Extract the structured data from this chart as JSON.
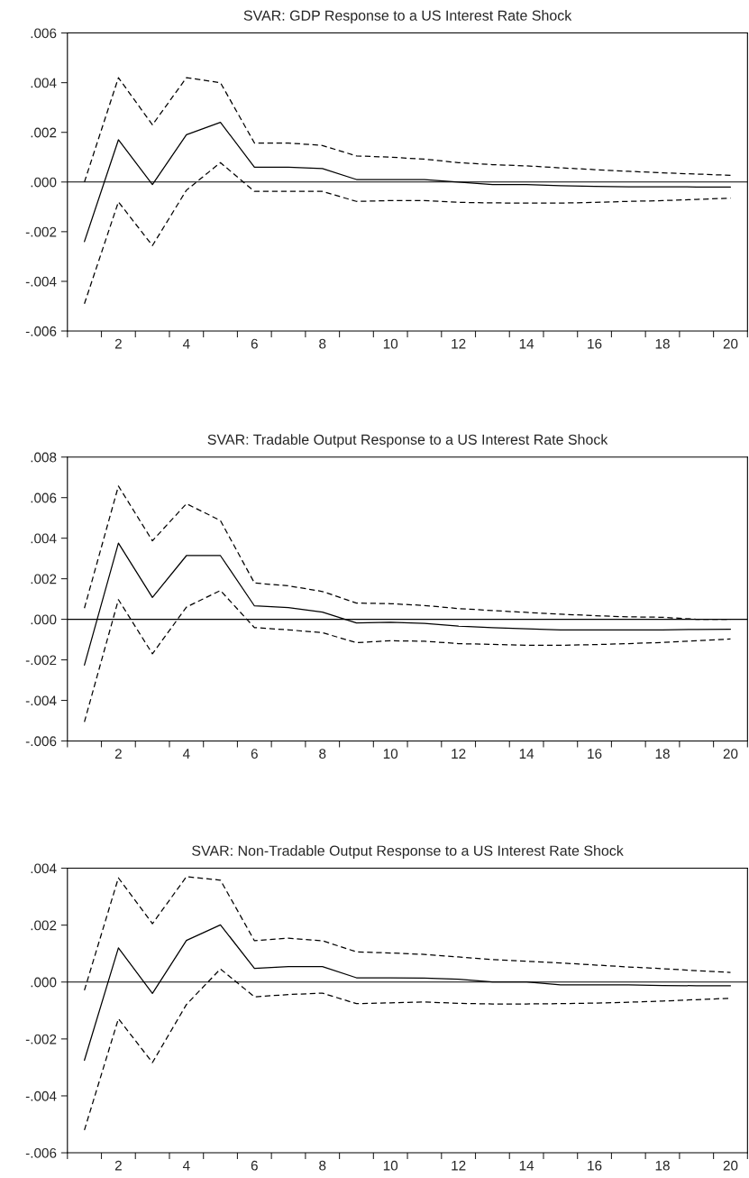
{
  "chart_data": [
    {
      "type": "line",
      "title": "SVAR: GDP Response to a US Interest Rate Shock",
      "x": [
        1,
        2,
        3,
        4,
        5,
        6,
        7,
        8,
        9,
        10,
        11,
        12,
        13,
        14,
        15,
        16,
        17,
        18,
        19,
        20
      ],
      "series": [
        {
          "color": "#000000",
          "line_style": "solid",
          "values": [
            -0.0024,
            0.0017,
            -0.0001,
            0.0019,
            0.0024,
            0.0006,
            0.0006,
            0.00054,
            0.0001,
            0.0001,
            0.0001,
            0.0,
            -0.0001,
            -0.0001,
            -0.00015,
            -0.00018,
            -0.00019,
            -0.00019,
            -0.0002,
            -0.0002
          ]
        },
        {
          "color": "#000000",
          "line_style": "dashed",
          "values": [
            0.0,
            0.0042,
            0.0023,
            0.0042,
            0.004,
            0.00157,
            0.00157,
            0.00147,
            0.00105,
            0.001,
            0.00092,
            0.00078,
            0.0007,
            0.00065,
            0.00057,
            0.0005,
            0.00043,
            0.00037,
            0.00032,
            0.00027
          ]
        },
        {
          "color": "#000000",
          "line_style": "dashed",
          "values": [
            -0.0049,
            -0.0008,
            -0.00256,
            -0.00033,
            0.00078,
            -0.00038,
            -0.00038,
            -0.00038,
            -0.00078,
            -0.00075,
            -0.00075,
            -0.00082,
            -0.00084,
            -0.00085,
            -0.00085,
            -0.00082,
            -0.00078,
            -0.00075,
            -0.0007,
            -0.00065
          ]
        }
      ],
      "xlim": [
        0.5,
        20.5
      ],
      "ylim": [
        -0.006,
        0.006
      ],
      "xticks": [
        {
          "value": 0.5,
          "label": null
        },
        {
          "value": 1.5,
          "label": null
        },
        {
          "value": 2,
          "label": "2"
        },
        {
          "value": 2.5,
          "label": null
        },
        {
          "value": 3.5,
          "label": null
        },
        {
          "value": 4,
          "label": "4"
        },
        {
          "value": 4.5,
          "label": null
        },
        {
          "value": 5.5,
          "label": null
        },
        {
          "value": 6,
          "label": "6"
        },
        {
          "value": 6.5,
          "label": null
        },
        {
          "value": 7.5,
          "label": null
        },
        {
          "value": 8,
          "label": "8"
        },
        {
          "value": 8.5,
          "label": null
        },
        {
          "value": 9.5,
          "label": null
        },
        {
          "value": 10,
          "label": "10"
        },
        {
          "value": 10.5,
          "label": null
        },
        {
          "value": 11.5,
          "label": null
        },
        {
          "value": 12,
          "label": "12"
        },
        {
          "value": 12.5,
          "label": null
        },
        {
          "value": 13.5,
          "label": null
        },
        {
          "value": 14,
          "label": "14"
        },
        {
          "value": 14.5,
          "label": null
        },
        {
          "value": 15.5,
          "label": null
        },
        {
          "value": 16,
          "label": "16"
        },
        {
          "value": 16.5,
          "label": null
        },
        {
          "value": 17.5,
          "label": null
        },
        {
          "value": 18,
          "label": "18"
        },
        {
          "value": 18.5,
          "label": null
        },
        {
          "value": 19.5,
          "label": null
        },
        {
          "value": 20,
          "label": "20"
        },
        {
          "value": 20.5,
          "label": null
        }
      ],
      "yticks": [
        {
          "value": -0.006,
          "label": "-.006"
        },
        {
          "value": -0.004,
          "label": "-.004"
        },
        {
          "value": -0.002,
          "label": "-.002"
        },
        {
          "value": 0,
          "label": ".000"
        },
        {
          "value": 0.002,
          "label": ".002"
        },
        {
          "value": 0.004,
          "label": ".004"
        },
        {
          "value": 0.006,
          "label": ".006"
        }
      ],
      "ref_lines": [
        {
          "axis": "y",
          "value": 0,
          "color": "#000000"
        }
      ]
    },
    {
      "type": "line",
      "title": "SVAR: Tradable Output Response to a US Interest Rate Shock",
      "x": [
        1,
        2,
        3,
        4,
        5,
        6,
        7,
        8,
        9,
        10,
        11,
        12,
        13,
        14,
        15,
        16,
        17,
        18,
        19,
        20
      ],
      "series": [
        {
          "color": "#000000",
          "line_style": "solid",
          "values": [
            -0.00226,
            0.00376,
            0.00108,
            0.00314,
            0.00314,
            0.00066,
            0.00058,
            0.00035,
            -0.00018,
            -0.00015,
            -0.0002,
            -0.00034,
            -0.00041,
            -0.00047,
            -0.00052,
            -0.00053,
            -0.00053,
            -0.00052,
            -0.0005,
            -0.00049
          ]
        },
        {
          "color": "#000000",
          "line_style": "dashed",
          "values": [
            0.00055,
            0.00657,
            0.00387,
            0.0057,
            0.00487,
            0.00179,
            0.00165,
            0.00137,
            0.0008,
            0.00077,
            0.00068,
            0.00053,
            0.00043,
            0.00034,
            0.00025,
            0.00018,
            0.00012,
            0.0001,
            0.0,
            0.0
          ]
        },
        {
          "color": "#000000",
          "line_style": "dashed",
          "values": [
            -0.00506,
            0.00097,
            -0.0017,
            0.0006,
            0.00142,
            -0.00041,
            -0.00052,
            -0.00066,
            -0.00115,
            -0.00106,
            -0.00108,
            -0.0012,
            -0.00124,
            -0.00128,
            -0.00128,
            -0.00125,
            -0.0012,
            -0.00114,
            -0.00106,
            -0.00097
          ]
        }
      ],
      "xlim": [
        0.5,
        20.5
      ],
      "ylim": [
        -0.006,
        0.008
      ],
      "xticks": [
        {
          "value": 0.5,
          "label": null
        },
        {
          "value": 1.5,
          "label": null
        },
        {
          "value": 2,
          "label": "2"
        },
        {
          "value": 2.5,
          "label": null
        },
        {
          "value": 3.5,
          "label": null
        },
        {
          "value": 4,
          "label": "4"
        },
        {
          "value": 4.5,
          "label": null
        },
        {
          "value": 5.5,
          "label": null
        },
        {
          "value": 6,
          "label": "6"
        },
        {
          "value": 6.5,
          "label": null
        },
        {
          "value": 7.5,
          "label": null
        },
        {
          "value": 8,
          "label": "8"
        },
        {
          "value": 8.5,
          "label": null
        },
        {
          "value": 9.5,
          "label": null
        },
        {
          "value": 10,
          "label": "10"
        },
        {
          "value": 10.5,
          "label": null
        },
        {
          "value": 11.5,
          "label": null
        },
        {
          "value": 12,
          "label": "12"
        },
        {
          "value": 12.5,
          "label": null
        },
        {
          "value": 13.5,
          "label": null
        },
        {
          "value": 14,
          "label": "14"
        },
        {
          "value": 14.5,
          "label": null
        },
        {
          "value": 15.5,
          "label": null
        },
        {
          "value": 16,
          "label": "16"
        },
        {
          "value": 16.5,
          "label": null
        },
        {
          "value": 17.5,
          "label": null
        },
        {
          "value": 18,
          "label": "18"
        },
        {
          "value": 18.5,
          "label": null
        },
        {
          "value": 19.5,
          "label": null
        },
        {
          "value": 20,
          "label": "20"
        },
        {
          "value": 20.5,
          "label": null
        }
      ],
      "yticks": [
        {
          "value": -0.006,
          "label": "-.006"
        },
        {
          "value": -0.004,
          "label": "-.004"
        },
        {
          "value": -0.002,
          "label": "-.002"
        },
        {
          "value": 0,
          "label": ".000"
        },
        {
          "value": 0.002,
          "label": ".002"
        },
        {
          "value": 0.004,
          "label": ".004"
        },
        {
          "value": 0.006,
          "label": ".006"
        },
        {
          "value": 0.008,
          "label": ".008"
        }
      ],
      "ref_lines": [
        {
          "axis": "y",
          "value": 0,
          "color": "#000000"
        }
      ]
    },
    {
      "type": "line",
      "title": "SVAR: Non-Tradable Output Response to a US Interest Rate Shock",
      "x": [
        1,
        2,
        3,
        4,
        5,
        6,
        7,
        8,
        9,
        10,
        11,
        12,
        13,
        14,
        15,
        16,
        17,
        18,
        19,
        20
      ],
      "series": [
        {
          "color": "#000000",
          "line_style": "solid",
          "values": [
            -0.00275,
            0.0012,
            -0.0004,
            0.00146,
            0.00201,
            0.00048,
            0.00054,
            0.00054,
            0.00015,
            0.00015,
            0.00014,
            0.0001,
            0.0,
            0.0,
            -0.0001,
            -0.0001,
            -0.0001,
            -0.00012,
            -0.00013,
            -0.00013
          ]
        },
        {
          "color": "#000000",
          "line_style": "dashed",
          "values": [
            -0.00029,
            0.00366,
            0.00205,
            0.0037,
            0.00358,
            0.00145,
            0.00154,
            0.00145,
            0.00106,
            0.00102,
            0.00097,
            0.00088,
            0.00079,
            0.00073,
            0.00067,
            0.0006,
            0.00053,
            0.00047,
            0.0004,
            0.00034
          ]
        },
        {
          "color": "#000000",
          "line_style": "dashed",
          "values": [
            -0.0052,
            -0.00129,
            -0.00283,
            -0.00079,
            0.00046,
            -0.00052,
            -0.00044,
            -0.00039,
            -0.00076,
            -0.00073,
            -0.0007,
            -0.00075,
            -0.00077,
            -0.00077,
            -0.00076,
            -0.00074,
            -0.00071,
            -0.00067,
            -0.00062,
            -0.00057
          ]
        }
      ],
      "xlim": [
        0.5,
        20.5
      ],
      "ylim": [
        -0.006,
        0.004
      ],
      "xticks": [
        {
          "value": 0.5,
          "label": null
        },
        {
          "value": 1.5,
          "label": null
        },
        {
          "value": 2,
          "label": "2"
        },
        {
          "value": 2.5,
          "label": null
        },
        {
          "value": 3.5,
          "label": null
        },
        {
          "value": 4,
          "label": "4"
        },
        {
          "value": 4.5,
          "label": null
        },
        {
          "value": 5.5,
          "label": null
        },
        {
          "value": 6,
          "label": "6"
        },
        {
          "value": 6.5,
          "label": null
        },
        {
          "value": 7.5,
          "label": null
        },
        {
          "value": 8,
          "label": "8"
        },
        {
          "value": 8.5,
          "label": null
        },
        {
          "value": 9.5,
          "label": null
        },
        {
          "value": 10,
          "label": "10"
        },
        {
          "value": 10.5,
          "label": null
        },
        {
          "value": 11.5,
          "label": null
        },
        {
          "value": 12,
          "label": "12"
        },
        {
          "value": 12.5,
          "label": null
        },
        {
          "value": 13.5,
          "label": null
        },
        {
          "value": 14,
          "label": "14"
        },
        {
          "value": 14.5,
          "label": null
        },
        {
          "value": 15.5,
          "label": null
        },
        {
          "value": 16,
          "label": "16"
        },
        {
          "value": 16.5,
          "label": null
        },
        {
          "value": 17.5,
          "label": null
        },
        {
          "value": 18,
          "label": "18"
        },
        {
          "value": 18.5,
          "label": null
        },
        {
          "value": 19.5,
          "label": null
        },
        {
          "value": 20,
          "label": "20"
        },
        {
          "value": 20.5,
          "label": null
        }
      ],
      "yticks": [
        {
          "value": -0.006,
          "label": "-.006"
        },
        {
          "value": -0.004,
          "label": "-.004"
        },
        {
          "value": -0.002,
          "label": "-.002"
        },
        {
          "value": 0,
          "label": ".000"
        },
        {
          "value": 0.002,
          "label": ".002"
        },
        {
          "value": 0.004,
          "label": ".004"
        }
      ],
      "ref_lines": [
        {
          "axis": "y",
          "value": 0,
          "color": "#000000"
        }
      ]
    }
  ]
}
